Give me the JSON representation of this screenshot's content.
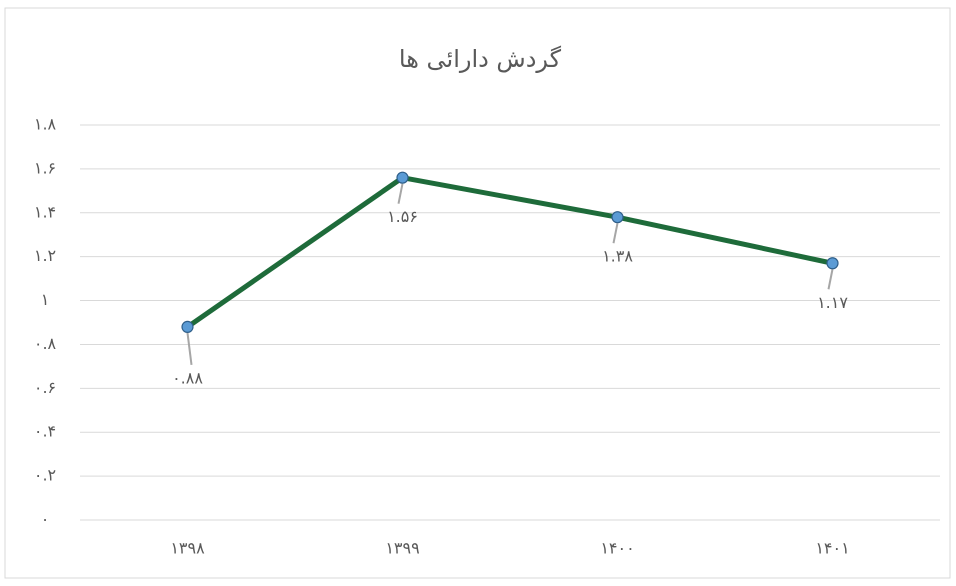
{
  "chart_data": {
    "type": "line",
    "title": "گردش دارائی ها",
    "categories": [
      "۱۳۹۸",
      "۱۳۹۹",
      "۱۴۰۰",
      "۱۴۰۱"
    ],
    "series": [
      {
        "color": "#1e6b3a",
        "marker_color": "#5b9bd5",
        "values": [
          0.88,
          1.56,
          1.38,
          1.17
        ],
        "value_labels": [
          "۰.۸۸",
          "۱.۵۶",
          "۱.۳۸",
          "۱.۱۷"
        ]
      }
    ],
    "ylim": [
      0,
      1.8
    ],
    "yticks": [
      {
        "value": 0,
        "label": "۰"
      },
      {
        "value": 0.2,
        "label": "۰.۲"
      },
      {
        "value": 0.4,
        "label": "۰.۴"
      },
      {
        "value": 0.6,
        "label": "۰.۶"
      },
      {
        "value": 0.8,
        "label": "۰.۸"
      },
      {
        "value": 1,
        "label": "۱"
      },
      {
        "value": 1.2,
        "label": "۱.۲"
      },
      {
        "value": 1.4,
        "label": "۱.۴"
      },
      {
        "value": 1.6,
        "label": "۱.۶"
      },
      {
        "value": 1.8,
        "label": "۱.۸"
      }
    ],
    "grid": true
  }
}
